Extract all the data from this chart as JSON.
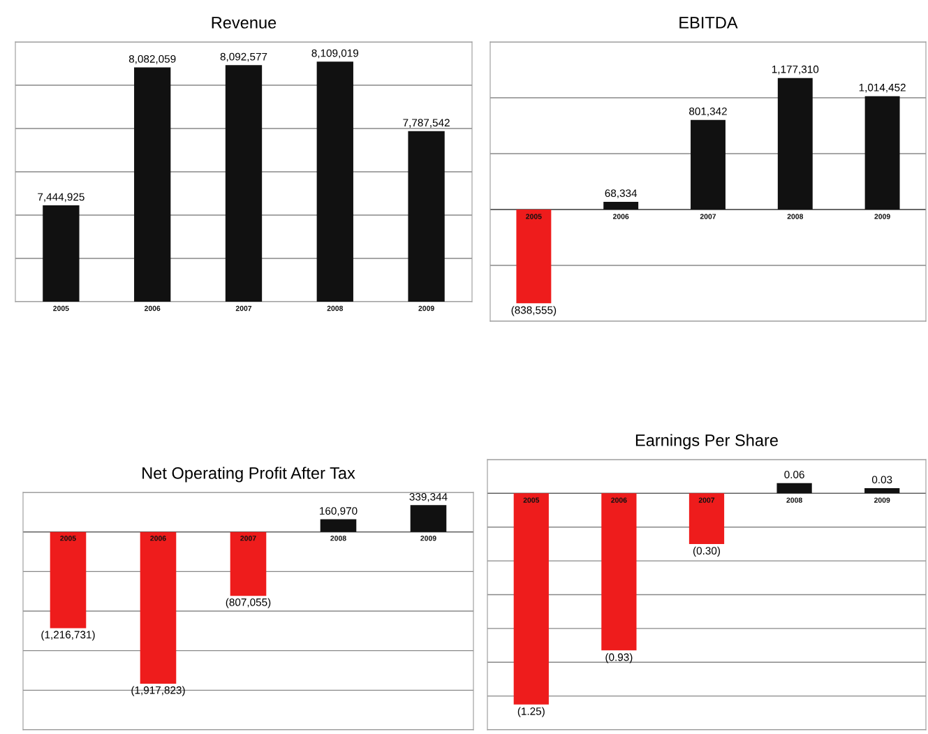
{
  "chart_data": [
    {
      "type": "bar",
      "title": "Revenue",
      "categories": [
        "2005",
        "2006",
        "2007",
        "2008",
        "2009"
      ],
      "values": [
        7444925,
        8082059,
        8092577,
        8109019,
        7787542
      ],
      "colors": [
        "#111111",
        "#111111",
        "#111111",
        "#111111",
        "#111111"
      ],
      "value_labels": [
        "7,444,925",
        "8,082,059",
        "8,092,577",
        "8,109,019",
        "7,787,542"
      ],
      "ylim": [
        7000000,
        8200000
      ],
      "yticks": [
        {
          "value": 7000000,
          "label": null
        },
        {
          "value": 7200000,
          "label": null
        },
        {
          "value": 7400000,
          "label": null
        },
        {
          "value": 7600000,
          "label": null
        },
        {
          "value": 7800000,
          "label": null
        },
        {
          "value": 8000000,
          "label": null
        },
        {
          "value": 8200000,
          "label": null
        }
      ],
      "grid": "y"
    },
    {
      "type": "bar",
      "title": "EBITDA",
      "categories": [
        "2005",
        "2006",
        "2007",
        "2008",
        "2009"
      ],
      "values": [
        -838555,
        68334,
        801342,
        1177310,
        1014452
      ],
      "colors": [
        "#ee1c1c",
        "#111111",
        "#111111",
        "#111111",
        "#111111"
      ],
      "value_labels": [
        "(838,555)",
        "68,334",
        "801,342",
        "1,177,310",
        "1,014,452"
      ],
      "ylim": [
        -1000000,
        1500000
      ],
      "yticks": [
        {
          "value": -1000000,
          "label": null
        },
        {
          "value": -500000,
          "label": null
        },
        {
          "value": 0,
          "label": null
        },
        {
          "value": 500000,
          "label": null
        },
        {
          "value": 1000000,
          "label": null
        },
        {
          "value": 1500000,
          "label": null
        }
      ],
      "grid": "y"
    },
    {
      "type": "bar",
      "title": "Net Operating Profit After Tax",
      "categories": [
        "2005",
        "2006",
        "2007",
        "2008",
        "2009"
      ],
      "values": [
        -1216731,
        -1917823,
        -807055,
        160970,
        339344
      ],
      "colors": [
        "#ee1c1c",
        "#ee1c1c",
        "#ee1c1c",
        "#111111",
        "#111111"
      ],
      "value_labels": [
        "(1,216,731)",
        "(1,917,823)",
        "(807,055)",
        "160,970",
        "339,344"
      ],
      "ylim": [
        -2500000,
        500000
      ],
      "yticks": [
        {
          "value": -2500000,
          "label": null
        },
        {
          "value": -2000000,
          "label": null
        },
        {
          "value": -1500000,
          "label": null
        },
        {
          "value": -1000000,
          "label": null
        },
        {
          "value": -500000,
          "label": null
        },
        {
          "value": 0,
          "label": null
        },
        {
          "value": 500000,
          "label": null
        }
      ],
      "grid": "y"
    },
    {
      "type": "bar",
      "title": "Earnings Per Share",
      "categories": [
        "2005",
        "2006",
        "2007",
        "2008",
        "2009"
      ],
      "values": [
        -1.25,
        -0.93,
        -0.3,
        0.06,
        0.03
      ],
      "colors": [
        "#ee1c1c",
        "#ee1c1c",
        "#ee1c1c",
        "#111111",
        "#111111"
      ],
      "value_labels": [
        "(1.25)",
        "(0.93)",
        "(0.30)",
        "0.06",
        "0.03"
      ],
      "ylim": [
        -1.4,
        0.2
      ],
      "yticks": [
        {
          "value": -1.4,
          "label": null
        },
        {
          "value": -1.2,
          "label": null
        },
        {
          "value": -1.0,
          "label": null
        },
        {
          "value": -0.8,
          "label": null
        },
        {
          "value": -0.6,
          "label": null
        },
        {
          "value": -0.4,
          "label": null
        },
        {
          "value": -0.2,
          "label": null
        },
        {
          "value": 0,
          "label": null
        },
        {
          "value": 0.2,
          "label": null
        }
      ],
      "grid": "y"
    }
  ]
}
